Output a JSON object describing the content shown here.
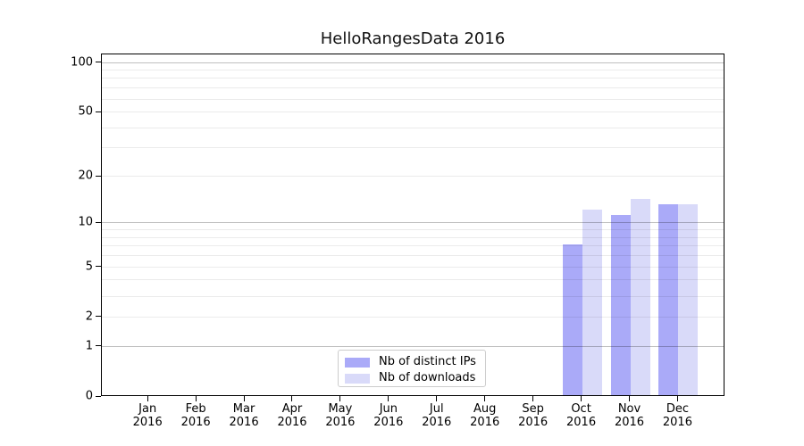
{
  "title": "HelloRangesData 2016",
  "colors": {
    "distinct_ips": "#aaaaf8",
    "downloads": "#d9daf9",
    "grid_major": "rgba(0,0,0,0.25)",
    "grid_minor": "rgba(0,0,0,0.08)",
    "axis_line": "#000000",
    "legend_border": "#cccccc",
    "text": "#000000"
  },
  "chart_data": {
    "type": "bar",
    "title": "HelloRangesData 2016",
    "x_month_labels": [
      "Jan",
      "Feb",
      "Mar",
      "Apr",
      "May",
      "Jun",
      "Jul",
      "Aug",
      "Sep",
      "Oct",
      "Nov",
      "Dec"
    ],
    "x_year_label": "2016",
    "series": [
      {
        "name": "Nb of distinct IPs",
        "color_key": "distinct_ips",
        "values": [
          0,
          0,
          0,
          0,
          0,
          0,
          0,
          0,
          0,
          7,
          11,
          13
        ]
      },
      {
        "name": "Nb of downloads",
        "color_key": "downloads",
        "values": [
          0,
          0,
          0,
          0,
          0,
          0,
          0,
          0,
          0,
          12,
          14,
          13
        ]
      }
    ],
    "y_axis": {
      "scale": "log10(value+1)",
      "tick_labels": [
        0,
        1,
        2,
        5,
        10,
        20,
        50,
        100
      ],
      "major_gridlines": [
        1,
        10,
        100
      ],
      "minor_gridlines": [
        2,
        3,
        4,
        5,
        6,
        7,
        8,
        9,
        20,
        30,
        40,
        50,
        60,
        70,
        80,
        90
      ],
      "range_max": 110
    },
    "grid": "on",
    "legend": {
      "position": "lower-center-inside",
      "items": [
        "Nb of distinct IPs",
        "Nb of downloads"
      ]
    }
  }
}
